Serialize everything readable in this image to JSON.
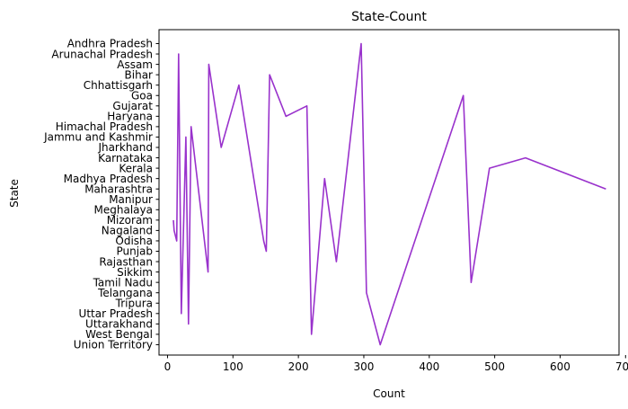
{
  "chart_data": {
    "type": "line",
    "title": "State-Count",
    "xlabel": "Count",
    "ylabel": "State",
    "categories": [
      "Andhra Pradesh",
      "Arunachal Pradesh",
      "Assam",
      "Bihar",
      "Chhattisgarh",
      "Goa",
      "Gujarat",
      "Haryana",
      "Himachal Pradesh",
      "Jammu and Kashmir",
      "Jharkhand",
      "Karnataka",
      "Kerala",
      "Madhya Pradesh",
      "Maharashtra",
      "Manipur",
      "Meghalaya",
      "Mizoram",
      "Nagaland",
      "Odisha",
      "Punjab",
      "Rajasthan",
      "Sikkim",
      "Tamil Nadu",
      "Telangana",
      "Tripura",
      "Uttar Pradesh",
      "Uttarakhand",
      "West Bengal",
      "Union Territory"
    ],
    "xticks": [
      0,
      100,
      200,
      300,
      400,
      500,
      600,
      700
    ],
    "xlim": [
      -13,
      690
    ],
    "grid": false,
    "color": "#9932CC",
    "points": [
      {
        "x": 9,
        "y": "Mizoram"
      },
      {
        "x": 10,
        "y": "Nagaland"
      },
      {
        "x": 14,
        "y": "Odisha"
      },
      {
        "x": 17,
        "y": "Arunachal Pradesh"
      },
      {
        "x": 21,
        "y": "Uttar Pradesh"
      },
      {
        "x": 28,
        "y": "Jammu and Kashmir"
      },
      {
        "x": 32,
        "y": "Uttarakhand"
      },
      {
        "x": 36,
        "y": "Himachal Pradesh"
      },
      {
        "x": 62,
        "y": "Sikkim"
      },
      {
        "x": 63,
        "y": "Assam"
      },
      {
        "x": 82,
        "y": "Jharkhand"
      },
      {
        "x": 109,
        "y": "Chhattisgarh"
      },
      {
        "x": 147,
        "y": "Odisha"
      },
      {
        "x": 151,
        "y": "Punjab"
      },
      {
        "x": 156,
        "y": "Bihar"
      },
      {
        "x": 181,
        "y": "Haryana"
      },
      {
        "x": 213,
        "y": "Gujarat"
      },
      {
        "x": 220,
        "y": "West Bengal"
      },
      {
        "x": 240,
        "y": "Madhya Pradesh"
      },
      {
        "x": 258,
        "y": "Rajasthan"
      },
      {
        "x": 296,
        "y": "Andhra Pradesh"
      },
      {
        "x": 304,
        "y": "Telangana"
      },
      {
        "x": 325,
        "y": "Union Territory"
      },
      {
        "x": 452,
        "y": "Goa"
      },
      {
        "x": 464,
        "y": "Tamil Nadu"
      },
      {
        "x": 492,
        "y": "Kerala"
      },
      {
        "x": 547,
        "y": "Karnataka"
      },
      {
        "x": 670,
        "y": "Maharashtra"
      }
    ]
  }
}
